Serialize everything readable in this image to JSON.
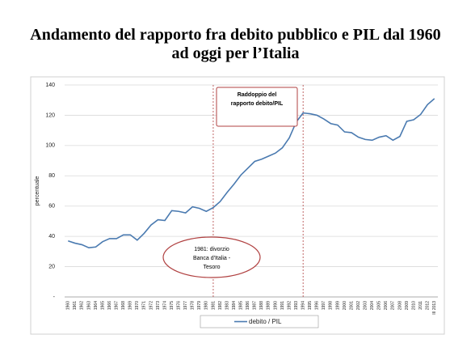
{
  "chart_data": {
    "type": "line",
    "title": "Andamento del rapporto fra debito pubblico e PIL dal 1960 ad oggi per l’Italia",
    "y_label": "percentuale",
    "categories": [
      "1960",
      "1961",
      "1962",
      "1963",
      "1964",
      "1965",
      "1966",
      "1967",
      "1968",
      "1969",
      "1970",
      "1971",
      "1972",
      "1973",
      "1974",
      "1975",
      "1976",
      "1977",
      "1978",
      "1979",
      "1980",
      "1981",
      "1982",
      "1983",
      "1984",
      "1985",
      "1986",
      "1987",
      "1988",
      "1989",
      "1990",
      "1991",
      "1992",
      "1993",
      "1994",
      "1995",
      "1996",
      "1997",
      "1998",
      "1999",
      "2000",
      "2001",
      "2002",
      "2003",
      "2004",
      "2005",
      "2006",
      "2007",
      "2008",
      "2009",
      "2010",
      "2011",
      "2012",
      "III 2013"
    ],
    "series": [
      {
        "name": "debito / PIL",
        "color": "#4a7ab0",
        "values": [
          37,
          35.5,
          34.5,
          32.5,
          33,
          36.5,
          38.5,
          38.5,
          41,
          41,
          37.5,
          42,
          47.5,
          51,
          50.5,
          57,
          56.5,
          55.5,
          59.5,
          58.5,
          56.5,
          59,
          63,
          69,
          74.5,
          80.5,
          85,
          89.5,
          91,
          93,
          95,
          98.5,
          105,
          115.5,
          121.5,
          121,
          120,
          117.5,
          114.5,
          113.5,
          109,
          108.5,
          105.5,
          104,
          103.5,
          105.5,
          106.5,
          103.5,
          106,
          116,
          117,
          120.5,
          127,
          131
        ]
      }
    ],
    "ylim": [
      0,
      140
    ],
    "yticks": [
      {
        "value": 0,
        "label": "-"
      },
      20,
      40,
      60,
      80,
      100,
      120,
      140
    ],
    "grid": true,
    "legend": "bottom",
    "reference_lines": [
      "1981",
      "1994"
    ],
    "annotations": [
      "Raddoppio del rapporto debito/PIL",
      "1981: divorzio Banca d'Italia - Tesoro"
    ]
  }
}
